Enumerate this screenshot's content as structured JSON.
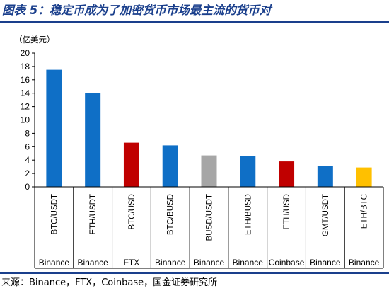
{
  "title": "图表 5：稳定币成为了加密货币市场最主流的货币对",
  "source": "来源：Binance，FTX，Coinbase，国金证券研究所",
  "chart_data": {
    "type": "bar",
    "unit_label": "（亿美元）",
    "ylim": [
      0,
      20
    ],
    "yticks": [
      0,
      2,
      4,
      6,
      8,
      10,
      12,
      14,
      16,
      18,
      20
    ],
    "grid": false,
    "categories": [
      "BTC/USDT",
      "ETH/USDT",
      "BTC/USD",
      "BTC/BUSD",
      "BUSD/USDT",
      "ETH/BUSD",
      "ETH/USD",
      "GMT/USDT",
      "ETH/BTC"
    ],
    "exchanges": [
      "Binance",
      "Binance",
      "FTX",
      "Binance",
      "Binance",
      "Binance",
      "Coinbase",
      "Binance",
      "Binance"
    ],
    "values": [
      17.5,
      14.0,
      6.6,
      6.2,
      4.7,
      4.6,
      3.8,
      3.1,
      2.9
    ],
    "bar_colors": [
      "#0f6fc6",
      "#0f6fc6",
      "#c00000",
      "#0f6fc6",
      "#a6a6a6",
      "#0f6fc6",
      "#c00000",
      "#0f6fc6",
      "#ffc000"
    ]
  }
}
